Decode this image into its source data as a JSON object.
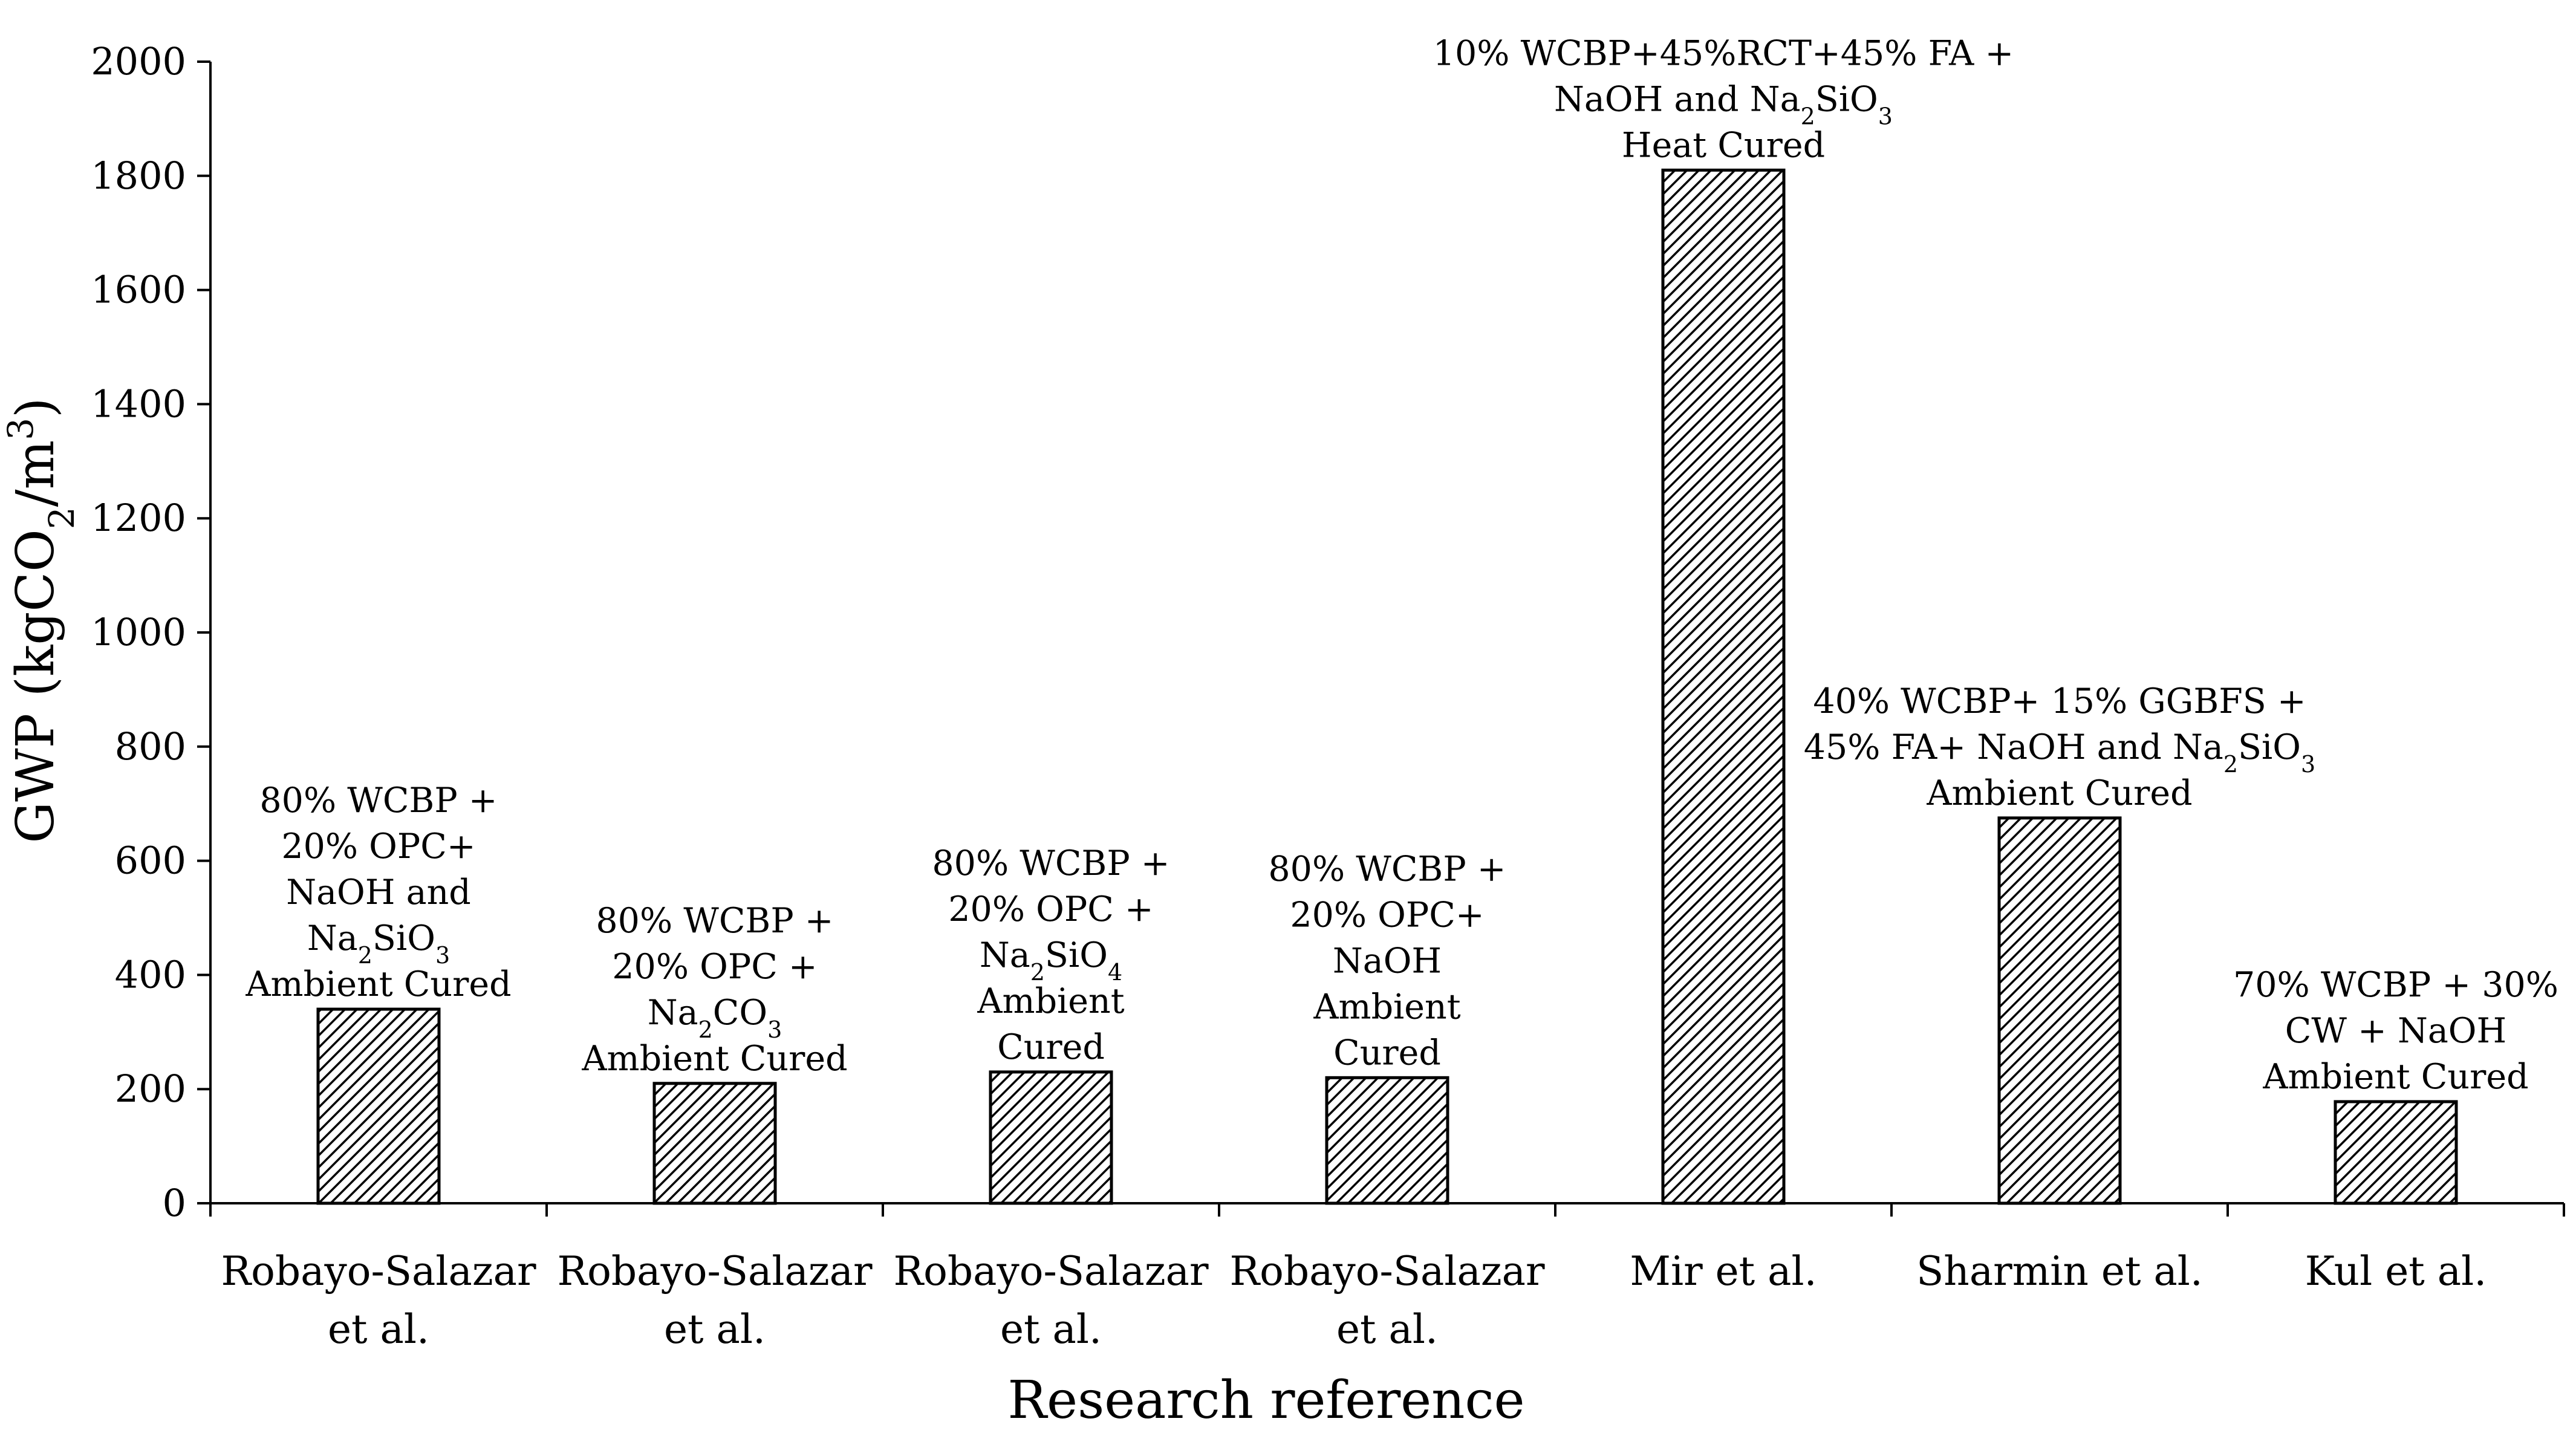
{
  "chart_data": {
    "type": "bar",
    "title": "",
    "xlabel": "Research reference",
    "ylabel": {
      "main": "GWP (kgCO",
      "sub": "2",
      "mid": "/m",
      "sup": "3",
      "end": ")"
    },
    "ylim": [
      0,
      2000
    ],
    "ytick_step": 200,
    "yticks": [
      "0",
      "200",
      "400",
      "600",
      "800",
      "1000",
      "1200",
      "1400",
      "1600",
      "1800",
      "2000"
    ],
    "grid": false,
    "colors": {
      "bar_stroke": "#000000",
      "hatch": "#000000",
      "bar_fill": "#ffffff"
    },
    "categories": [
      [
        "Robayo-Salazar",
        "et al."
      ],
      [
        "Robayo-Salazar",
        "et al."
      ],
      [
        "Robayo-Salazar",
        "et al."
      ],
      [
        "Robayo-Salazar",
        "et al."
      ],
      [
        "Mir et al."
      ],
      [
        "Sharmin et al."
      ],
      [
        "Kul et al."
      ]
    ],
    "values": [
      340,
      210,
      230,
      220,
      1810,
      675,
      178
    ],
    "annotations": [
      [
        [
          {
            "t": "80% WCBP +"
          }
        ],
        [
          {
            "t": "20% OPC+"
          }
        ],
        [
          {
            "t": "NaOH and"
          }
        ],
        [
          {
            "t": "Na"
          },
          {
            "t": "2",
            "s": "sub"
          },
          {
            "t": "SiO"
          },
          {
            "t": "3",
            "s": "sub"
          }
        ],
        [
          {
            "t": "Ambient Cured"
          }
        ]
      ],
      [
        [
          {
            "t": "80% WCBP +"
          }
        ],
        [
          {
            "t": "20% OPC +"
          }
        ],
        [
          {
            "t": "Na"
          },
          {
            "t": "2",
            "s": "sub"
          },
          {
            "t": "CO"
          },
          {
            "t": "3",
            "s": "sub"
          }
        ],
        [
          {
            "t": "Ambient Cured"
          }
        ]
      ],
      [
        [
          {
            "t": "80% WCBP +"
          }
        ],
        [
          {
            "t": "20% OPC +"
          }
        ],
        [
          {
            "t": "Na"
          },
          {
            "t": "2",
            "s": "sub"
          },
          {
            "t": "SiO"
          },
          {
            "t": "4",
            "s": "sub"
          }
        ],
        [
          {
            "t": "Ambient"
          }
        ],
        [
          {
            "t": "Cured"
          }
        ]
      ],
      [
        [
          {
            "t": "80% WCBP +"
          }
        ],
        [
          {
            "t": "20% OPC+"
          }
        ],
        [
          {
            "t": "NaOH"
          }
        ],
        [
          {
            "t": "Ambient"
          }
        ],
        [
          {
            "t": "Cured"
          }
        ]
      ],
      [
        [
          {
            "t": "10% WCBP+45%RCT+45% FA +"
          }
        ],
        [
          {
            "t": "NaOH and Na"
          },
          {
            "t": "2",
            "s": "sub"
          },
          {
            "t": "SiO"
          },
          {
            "t": "3",
            "s": "sub"
          }
        ],
        [
          {
            "t": "Heat Cured"
          }
        ]
      ],
      [
        [
          {
            "t": "40% WCBP+ 15% GGBFS +"
          }
        ],
        [
          {
            "t": "45% FA+ NaOH and Na"
          },
          {
            "t": "2",
            "s": "sub"
          },
          {
            "t": "SiO"
          },
          {
            "t": "3",
            "s": "sub"
          }
        ],
        [
          {
            "t": "Ambient Cured"
          }
        ]
      ],
      [
        [
          {
            "t": "70% WCBP + 30%"
          }
        ],
        [
          {
            "t": "CW + NaOH"
          }
        ],
        [
          {
            "t": "Ambient Cured"
          }
        ]
      ]
    ]
  }
}
